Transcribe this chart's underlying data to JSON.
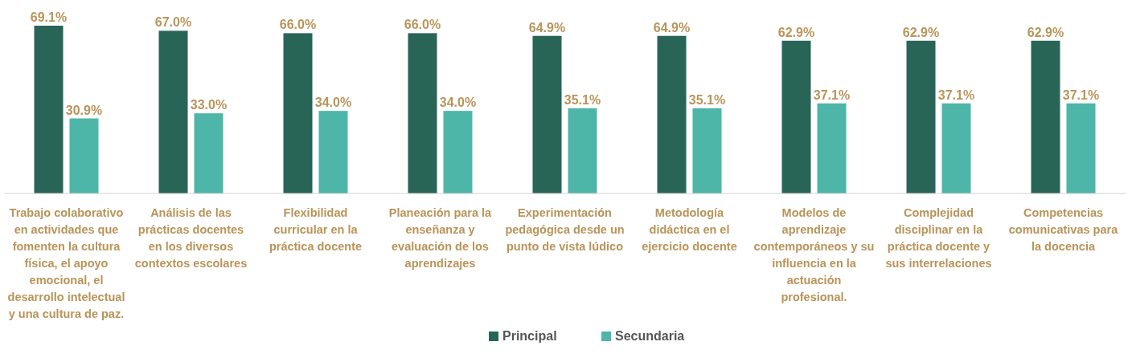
{
  "chart_data": {
    "type": "bar",
    "categories": [
      "Trabajo colaborativo en actividades que fomenten la cultura física, el apoyo emocional, el desarrollo intelectual y una cultura de paz.",
      "Análisis de las prácticas docentes en los diversos contextos escolares",
      "Flexibilidad curricular en la práctica docente",
      "Planeación para la enseñanza y evaluación de los aprendizajes",
      "Experimentación pedagógica desde un punto de vista lúdico",
      "Metodología didáctica en el ejercicio docente",
      "Modelos de aprendizaje contemporáneos y su influencia en la actuación profesional.",
      "Complejidad disciplinar en la práctica docente y sus interrelaciones",
      "Competencias comunicativas para la docencia"
    ],
    "series": [
      {
        "name": "Principal",
        "color": "#286556",
        "values": [
          69.1,
          67.0,
          66.0,
          66.0,
          64.9,
          64.9,
          62.9,
          62.9,
          62.9
        ],
        "value_labels": [
          "69.1%",
          "67.0%",
          "66.0%",
          "66.0%",
          "64.9%",
          "64.9%",
          "62.9%",
          "62.9%",
          "62.9%"
        ]
      },
      {
        "name": "Secundaria",
        "color": "#4db6a8",
        "values": [
          30.9,
          33.0,
          34.0,
          34.0,
          35.1,
          35.1,
          37.1,
          37.1,
          37.1
        ],
        "value_labels": [
          "30.9%",
          "33.0%",
          "34.0%",
          "34.0%",
          "35.1%",
          "35.1%",
          "37.1%",
          "37.1%",
          "37.1%"
        ]
      }
    ],
    "legend": "bottom"
  }
}
